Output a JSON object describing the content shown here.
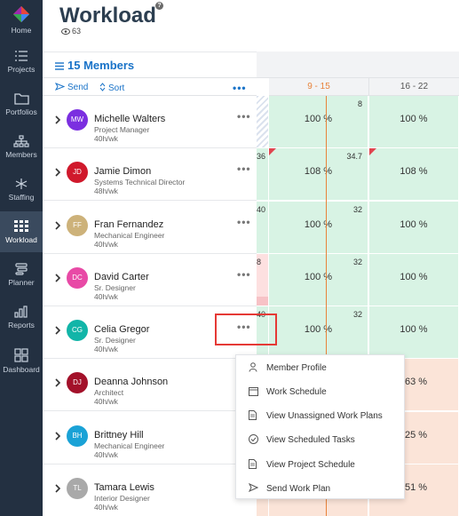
{
  "nav": {
    "items": [
      {
        "label": "Home",
        "icon": "logo-icon"
      },
      {
        "label": "Projects",
        "icon": "list-icon"
      },
      {
        "label": "Portfolios",
        "icon": "folder-icon"
      },
      {
        "label": "Members",
        "icon": "org-chart-icon"
      },
      {
        "label": "Staffing",
        "icon": "network-icon"
      },
      {
        "label": "Workload",
        "icon": "grid-icon"
      },
      {
        "label": "Planner",
        "icon": "planner-icon"
      },
      {
        "label": "Reports",
        "icon": "bar-chart-icon"
      },
      {
        "label": "Dashboard",
        "icon": "dashboard-icon"
      }
    ],
    "active": "Workload"
  },
  "header": {
    "title": "Workload",
    "help": "?",
    "view_count": "63"
  },
  "members_panel": {
    "title": "15 Members",
    "send_label": "Send",
    "sort_label": "Sort",
    "more_label": "•••"
  },
  "weeks": [
    {
      "label": "9 - 15",
      "current": true
    },
    {
      "label": "16 - 22",
      "current": false
    }
  ],
  "members": [
    {
      "initials": "MW",
      "name": "Michelle Walters",
      "role": "Project Manager",
      "hours": "40h/wk",
      "color": "#7b2fe0",
      "dots": "•••",
      "prev": {
        "value": "",
        "style": "hatch"
      },
      "w1": {
        "pct": "100 %",
        "cap": "8",
        "style": "g"
      },
      "w2": {
        "pct": "100 %",
        "cap": "",
        "style": "g"
      }
    },
    {
      "initials": "JD",
      "name": "Jamie Dimon",
      "role": "Systems Technical Director",
      "hours": "48h/wk",
      "color": "#d0192c",
      "dots": "•••",
      "prev": {
        "value": "36",
        "style": "g"
      },
      "w1": {
        "pct": "108 %",
        "cap": "34.7",
        "style": "g"
      },
      "w2": {
        "pct": "108 %",
        "cap": "",
        "style": "g"
      }
    },
    {
      "initials": "FF",
      "name": "Fran Fernandez",
      "role": "Mechanical Engineer",
      "hours": "40h/wk",
      "color": "#cdb27a",
      "dots": "•••",
      "prev": {
        "value": "40",
        "style": "g"
      },
      "w1": {
        "pct": "100 %",
        "cap": "32",
        "style": "g"
      },
      "w2": {
        "pct": "100 %",
        "cap": "",
        "style": "g"
      }
    },
    {
      "initials": "DC",
      "name": "David Carter",
      "role": "Sr. Designer",
      "hours": "40h/wk",
      "color": "#e84aa6",
      "dots": "•••",
      "prev": {
        "value": "8",
        "style": "r"
      },
      "w1": {
        "pct": "100 %",
        "cap": "32",
        "style": "g"
      },
      "w2": {
        "pct": "100 %",
        "cap": "",
        "style": "g"
      }
    },
    {
      "initials": "CG",
      "name": "Celia Gregor",
      "role": "Sr. Designer",
      "hours": "40h/wk",
      "color": "#12b5a8",
      "dots": "•••",
      "prev": {
        "value": "40",
        "style": "g"
      },
      "w1": {
        "pct": "100 %",
        "cap": "32",
        "style": "g"
      },
      "w2": {
        "pct": "100 %",
        "cap": "",
        "style": "g"
      }
    },
    {
      "initials": "DJ",
      "name": "Deanna Johnson",
      "role": "Architect",
      "hours": "40h/wk",
      "color": "#a3112a",
      "dots": "",
      "prev": {
        "value": "",
        "style": "o"
      },
      "w1": {
        "pct": "",
        "cap": "",
        "style": "o"
      },
      "w2": {
        "pct": "63 %",
        "cap": "",
        "style": "o"
      }
    },
    {
      "initials": "BH",
      "name": "Brittney Hill",
      "role": "Mechanical Engineer",
      "hours": "40h/wk",
      "color": "#1aa2d6",
      "dots": "",
      "prev": {
        "value": "",
        "style": "o"
      },
      "w1": {
        "pct": "",
        "cap": "",
        "style": "o"
      },
      "w2": {
        "pct": "25 %",
        "cap": "",
        "style": "o"
      }
    },
    {
      "initials": "TL",
      "name": "Tamara Lewis",
      "role": "Interior Designer",
      "hours": "40h/wk",
      "color": "#a9a9a9",
      "dots": "",
      "prev": {
        "value": "",
        "style": "o"
      },
      "w1": {
        "pct": "",
        "cap": "",
        "style": "o"
      },
      "w2": {
        "pct": "51 %",
        "cap": "",
        "style": "o"
      }
    }
  ],
  "context_menu": {
    "items": [
      {
        "label": "Member Profile",
        "icon": "person-icon"
      },
      {
        "label": "Work Schedule",
        "icon": "calendar-icon"
      },
      {
        "label": "View Unassigned Work Plans",
        "icon": "document-icon"
      },
      {
        "label": "View Scheduled Tasks",
        "icon": "check-circle-icon"
      },
      {
        "label": "View Project Schedule",
        "icon": "document-icon"
      },
      {
        "label": "Send Work Plan",
        "icon": "send-icon"
      }
    ]
  }
}
